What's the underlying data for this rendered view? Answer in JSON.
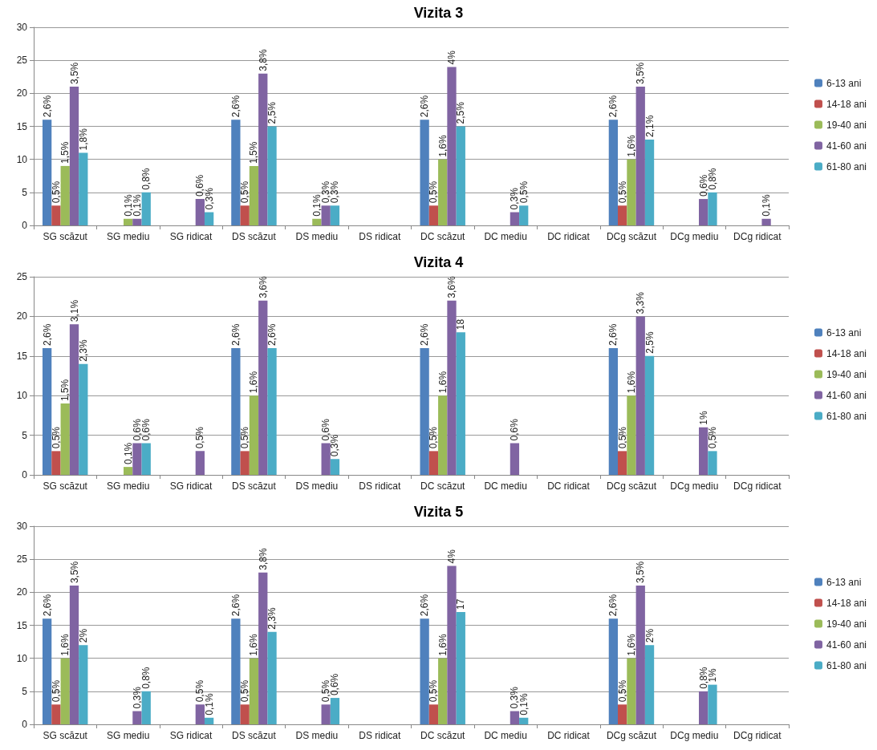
{
  "chart_data": [
    {
      "type": "bar",
      "title": "Vizita 3",
      "categories": [
        "SG scăzut",
        "SG mediu",
        "SG ridicat",
        "DS scăzut",
        "DS mediu",
        "DS ridicat",
        "DC scăzut",
        "DC mediu",
        "DC ridicat",
        "DCg scăzut",
        "DCg mediu",
        "DCg ridicat"
      ],
      "ylim": [
        0,
        30
      ],
      "yticks": [
        0,
        5,
        10,
        15,
        20,
        25,
        30
      ],
      "grid": "y",
      "legend": "right",
      "series": [
        {
          "name": "6-13 ani",
          "color": "#4f81bd",
          "values": [
            16,
            null,
            null,
            16,
            null,
            null,
            16,
            null,
            null,
            16,
            null,
            null
          ]
        },
        {
          "name": "14-18 ani",
          "color": "#c0504d",
          "values": [
            3,
            null,
            null,
            3,
            null,
            null,
            3,
            null,
            null,
            3,
            null,
            null
          ]
        },
        {
          "name": "19-40 ani",
          "color": "#9bbb59",
          "values": [
            9,
            1,
            null,
            9,
            1,
            null,
            10,
            null,
            null,
            10,
            null,
            null
          ]
        },
        {
          "name": "41-60 ani",
          "color": "#8064a2",
          "values": [
            21,
            1,
            4,
            23,
            3,
            null,
            24,
            2,
            null,
            21,
            4,
            1
          ]
        },
        {
          "name": "61-80 ani",
          "color": "#4bacc6",
          "values": [
            11,
            5,
            2,
            15,
            3,
            null,
            15,
            3,
            null,
            13,
            5,
            null
          ]
        }
      ],
      "annotations": [
        "2,6%",
        "0,5%",
        "1,5%",
        "3,5%",
        "1,8%",
        "0,1%",
        "0,1%",
        "0,8%",
        "0,6%",
        "0,3%",
        "2,6%",
        "0,5%",
        "1,5%",
        "3,8%",
        "2,5%",
        "0,1%",
        "0,3%",
        "0,3%",
        "2,6%",
        "0,5%",
        "1,6%",
        "4%",
        "2,5%",
        "0,3%",
        "0,5%",
        "2,6%",
        "0,5%",
        "1,6%",
        "3,5%",
        "2,1%",
        "0,6%",
        "0,8%",
        "0,1%"
      ]
    },
    {
      "type": "bar",
      "title": "Vizita 4",
      "categories": [
        "SG scăzut",
        "SG mediu",
        "SG ridicat",
        "DS scăzut",
        "DS mediu",
        "DS ridicat",
        "DC scăzut",
        "DC mediu",
        "DC ridicat",
        "DCg scăzut",
        "DCg mediu",
        "DCg ridicat"
      ],
      "ylim": [
        0,
        25
      ],
      "yticks": [
        0,
        5,
        10,
        15,
        20,
        25
      ],
      "grid": "y",
      "legend": "right",
      "series": [
        {
          "name": "6-13 ani",
          "color": "#4f81bd",
          "values": [
            16,
            null,
            null,
            16,
            null,
            null,
            16,
            null,
            null,
            16,
            null,
            null
          ]
        },
        {
          "name": "14-18 ani",
          "color": "#c0504d",
          "values": [
            3,
            null,
            null,
            3,
            null,
            null,
            3,
            null,
            null,
            3,
            null,
            null
          ]
        },
        {
          "name": "19-40 ani",
          "color": "#9bbb59",
          "values": [
            9,
            1,
            null,
            10,
            null,
            null,
            10,
            null,
            null,
            10,
            null,
            null
          ]
        },
        {
          "name": "41-60 ani",
          "color": "#8064a2",
          "values": [
            19,
            4,
            3,
            22,
            4,
            null,
            22,
            4,
            null,
            20,
            6,
            null
          ]
        },
        {
          "name": "61-80 ani",
          "color": "#4bacc6",
          "values": [
            14,
            4,
            null,
            16,
            2,
            null,
            18,
            null,
            null,
            15,
            3,
            null
          ]
        }
      ],
      "annotations": [
        "2,6%",
        "0,5%",
        "1,5%",
        "3,1%",
        "2,3%",
        "0,1%",
        "0,6%",
        "0,6%",
        "0,5%",
        "2,6%",
        "0,5%",
        "1,6%",
        "3,6%",
        "2,6%",
        "0,6%",
        "0,3%",
        "2,6%",
        "0,5%",
        "1,6%",
        "3,6%",
        "18",
        "0,6%",
        "2,6%",
        "0,5%",
        "1,6%",
        "3,3%",
        "2,5%",
        "1%",
        "0,5%"
      ]
    },
    {
      "type": "bar",
      "title": "Vizita 5",
      "categories": [
        "SG scăzut",
        "SG mediu",
        "SG ridicat",
        "DS scăzut",
        "DS mediu",
        "DS ridicat",
        "DC scăzut",
        "DC mediu",
        "DC ridicat",
        "DCg scăzut",
        "DCg mediu",
        "DCg ridicat"
      ],
      "ylim": [
        0,
        30
      ],
      "yticks": [
        0,
        5,
        10,
        15,
        20,
        25,
        30
      ],
      "grid": "y",
      "legend": "right",
      "series": [
        {
          "name": "6-13 ani",
          "color": "#4f81bd",
          "values": [
            16,
            null,
            null,
            16,
            null,
            null,
            16,
            null,
            null,
            16,
            null,
            null
          ]
        },
        {
          "name": "14-18 ani",
          "color": "#c0504d",
          "values": [
            3,
            null,
            null,
            3,
            null,
            null,
            3,
            null,
            null,
            3,
            null,
            null
          ]
        },
        {
          "name": "19-40 ani",
          "color": "#9bbb59",
          "values": [
            10,
            null,
            null,
            10,
            null,
            null,
            10,
            null,
            null,
            10,
            null,
            null
          ]
        },
        {
          "name": "41-60 ani",
          "color": "#8064a2",
          "values": [
            21,
            2,
            3,
            23,
            3,
            null,
            24,
            2,
            null,
            21,
            5,
            null
          ]
        },
        {
          "name": "61-80 ani",
          "color": "#4bacc6",
          "values": [
            12,
            5,
            1,
            14,
            4,
            null,
            17,
            1,
            null,
            12,
            6,
            null
          ]
        }
      ],
      "annotations": [
        "2,6%",
        "0,5%",
        "1,6%",
        "3,5%",
        "2%",
        "0,3%",
        "0,8%",
        "0,5%",
        "0,1%",
        "2,6%",
        "0,5%",
        "1,6%",
        "3,8%",
        "2,3%",
        "0,5%",
        "0,6%",
        "2,6%",
        "0,5%",
        "1,6%",
        "4%",
        "17",
        "0,3%",
        "0,1%",
        "2,6%",
        "0,5%",
        "1,6%",
        "3,5%",
        "2%",
        "0,8%",
        "1%"
      ]
    }
  ]
}
